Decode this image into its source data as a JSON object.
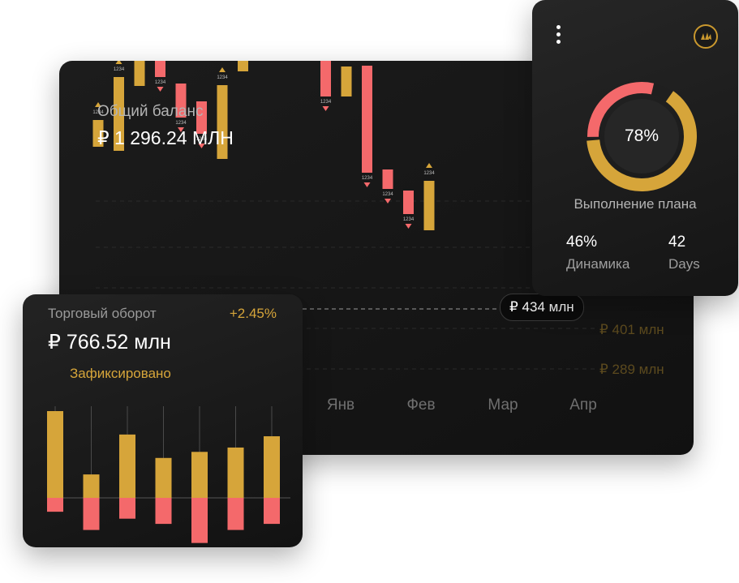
{
  "balance": {
    "label": "Общий баланс",
    "value": "₽ 1 296.24 МЛН"
  },
  "chart_data": [
    {
      "type": "candlestick",
      "months": [
        "Янв",
        "Фев",
        "Мар",
        "Апр"
      ],
      "price_levels": [
        "₽ 401 млн",
        "₽ 289 млн"
      ],
      "tooltip": "₽ 434 млн",
      "marker_label": "1234",
      "candles": [
        {
          "open": 400,
          "close": 367,
          "dir": "up"
        },
        {
          "open": 453,
          "close": 362,
          "dir": "up"
        },
        {
          "open": 528,
          "close": 442,
          "dir": "up"
        },
        {
          "open": 490,
          "close": 453,
          "dir": "down"
        },
        {
          "open": 445,
          "close": 403,
          "dir": "down"
        },
        {
          "open": 423,
          "close": 383,
          "dir": "down"
        },
        {
          "open": 443,
          "close": 352,
          "dir": "up"
        },
        {
          "open": 535,
          "close": 460,
          "dir": "up"
        },
        {
          "open": 546,
          "close": 528,
          "dir": "up"
        },
        {
          "open": 568,
          "close": 546,
          "dir": "up"
        },
        {
          "open": 524,
          "close": 502,
          "dir": "down"
        },
        {
          "open": 493,
          "close": 429,
          "dir": "down"
        },
        {
          "open": 466,
          "close": 429,
          "dir": "up"
        },
        {
          "open": 467,
          "close": 335,
          "dir": "down"
        },
        {
          "open": 339,
          "close": 315,
          "dir": "down"
        },
        {
          "open": 313,
          "close": 284,
          "dir": "down"
        },
        {
          "open": 325,
          "close": 264,
          "dir": "up"
        }
      ]
    },
    {
      "type": "bar",
      "baseline": 0,
      "gains": [
        100,
        27,
        73,
        46,
        53,
        58,
        71
      ],
      "losses": [
        -16,
        -37,
        -24,
        -30,
        -52,
        -37,
        -30
      ]
    }
  ],
  "turnover": {
    "label": "Торговый оборот",
    "change": "+2.45%",
    "value": "₽ 766.52 млн",
    "status": "Зафиксировано"
  },
  "plan": {
    "percent": 78,
    "percent_label": "78%",
    "label": "Выполнение плана",
    "stats": [
      {
        "value": "46%",
        "label": "Динамика"
      },
      {
        "value": "42",
        "label": "Days"
      }
    ]
  },
  "colors": {
    "gold": "#d6a53a",
    "red": "#f4696b",
    "bg": "#141414"
  },
  "icons": {
    "menu": "kebab-menu-icon",
    "logo": "brand-logo-icon"
  }
}
